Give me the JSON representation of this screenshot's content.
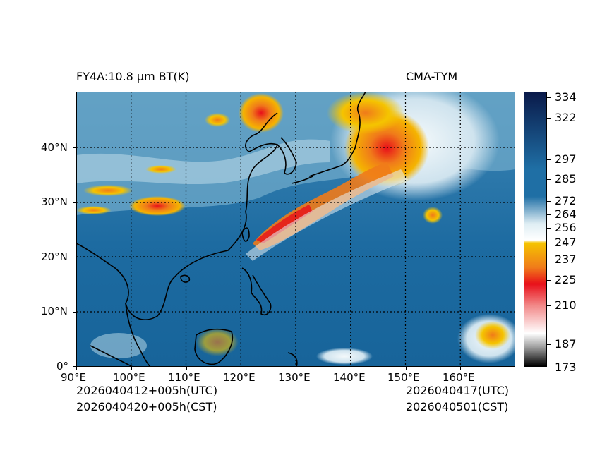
{
  "header": {
    "title_left": "FY4A:10.8 µm BT(K)",
    "title_right": "CMA-TYM"
  },
  "footer": {
    "init_utc": "2026040412+005h(UTC)",
    "init_cst": "2026040420+005h(CST)",
    "valid_utc": "2026040417(UTC)",
    "valid_cst": "2026040501(CST)"
  },
  "axes": {
    "x_ticks": [
      "90°E",
      "100°E",
      "110°E",
      "120°E",
      "130°E",
      "140°E",
      "150°E",
      "160°E"
    ],
    "y_ticks": [
      "0°",
      "10°N",
      "20°N",
      "30°N",
      "40°N"
    ]
  },
  "colorbar": {
    "labels": [
      "334",
      "322",
      "297",
      "285",
      "272",
      "264",
      "256",
      "247",
      "237",
      "225",
      "210",
      "187",
      "173"
    ],
    "colors": {
      "cold_top": "#0a1a4a",
      "mid_blue": "#1f6fa5",
      "light": "#dfeef4",
      "yellow": "#f5c400",
      "orange": "#f07b1a",
      "red": "#e8101a",
      "white": "#ffffff",
      "black": "#000000"
    }
  },
  "colors": {
    "ocean": "#1c6aa0",
    "land_cool": "#5e9dbf",
    "cloud_light": "#c8e0ec",
    "cloud_cold": "#e45a1e",
    "coast": "#000000"
  }
}
